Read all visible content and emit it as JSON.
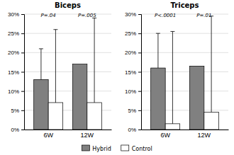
{
  "chart_data": [
    {
      "type": "bar",
      "title": "Biceps",
      "categories": [
        "6W",
        "12W"
      ],
      "series": [
        {
          "name": "Hybrid",
          "color": "#808080",
          "values": [
            13,
            17
          ],
          "errors": [
            8,
            0
          ]
        },
        {
          "name": "Control",
          "color": "#ffffff",
          "values": [
            7,
            7
          ],
          "errors": [
            19,
            22
          ]
        }
      ],
      "annotations": [
        {
          "text": "P=.04",
          "y": 29
        },
        {
          "text": "P=.005",
          "y": 29
        }
      ],
      "ylim": [
        0,
        30
      ],
      "yticks": [
        {
          "value": 0,
          "label": "0%"
        },
        {
          "value": 5,
          "label": "5%"
        },
        {
          "value": 10,
          "label": "10%"
        },
        {
          "value": 15,
          "label": "15%"
        },
        {
          "value": 20,
          "label": "20%"
        },
        {
          "value": 25,
          "label": "25%"
        },
        {
          "value": 30,
          "label": "30%"
        }
      ],
      "grid": true,
      "legend": "bottom"
    },
    {
      "type": "bar",
      "title": "Triceps",
      "categories": [
        "6W",
        "12W"
      ],
      "series": [
        {
          "name": "Hybrid",
          "color": "#808080",
          "values": [
            16,
            16.5
          ],
          "errors": [
            9,
            0
          ]
        },
        {
          "name": "Control",
          "color": "#ffffff",
          "values": [
            1.5,
            4.5
          ],
          "errors": [
            24,
            25
          ]
        }
      ],
      "annotations": [
        {
          "text": "P<.0001",
          "y": 29
        },
        {
          "text": "P=.01",
          "y": 29
        }
      ],
      "ylim": [
        0,
        30
      ],
      "yticks": [
        {
          "value": 0,
          "label": "0%"
        },
        {
          "value": 5,
          "label": "5%"
        },
        {
          "value": 10,
          "label": "10%"
        },
        {
          "value": 15,
          "label": "15%"
        },
        {
          "value": 20,
          "label": "20%"
        },
        {
          "value": 25,
          "label": "25%"
        },
        {
          "value": 30,
          "label": "30%"
        }
      ],
      "grid": true
    }
  ]
}
